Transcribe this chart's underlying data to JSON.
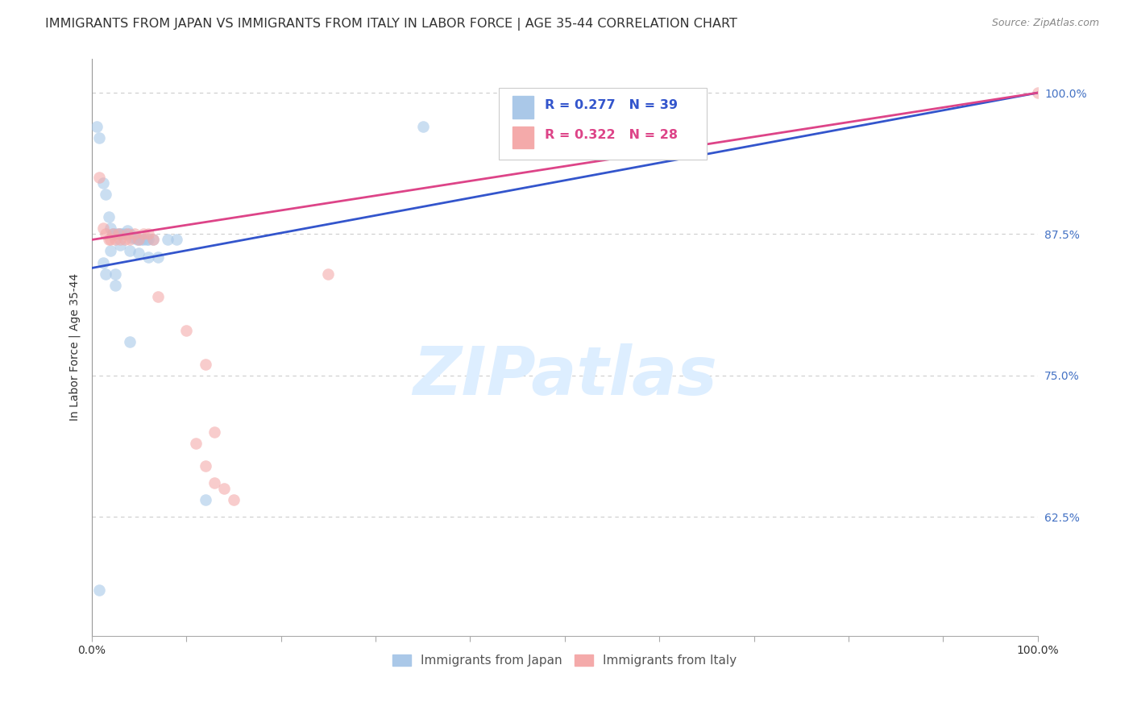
{
  "title": "IMMIGRANTS FROM JAPAN VS IMMIGRANTS FROM ITALY IN LABOR FORCE | AGE 35-44 CORRELATION CHART",
  "source_text": "Source: ZipAtlas.com",
  "ylabel": "In Labor Force | Age 35-44",
  "xlim": [
    0.0,
    1.0
  ],
  "ylim": [
    0.52,
    1.03
  ],
  "yticks": [
    0.625,
    0.75,
    0.875,
    1.0
  ],
  "ytick_labels": [
    "62.5%",
    "75.0%",
    "87.5%",
    "100.0%"
  ],
  "japan_R": 0.277,
  "japan_N": 39,
  "italy_R": 0.322,
  "italy_N": 28,
  "japan_color": "#a8c8e8",
  "italy_color": "#f4aaaa",
  "japan_line_color": "#3355cc",
  "italy_line_color": "#dd4488",
  "background_color": "#ffffff",
  "grid_color": "#cccccc",
  "title_fontsize": 11.5,
  "axis_label_fontsize": 10,
  "tick_fontsize": 10,
  "watermark_text": "ZIPatlas",
  "watermark_color": "#ddeeff",
  "watermark_fontsize": 60,
  "japan_x": [
    0.005,
    0.008,
    0.012,
    0.015,
    0.018,
    0.02,
    0.022,
    0.025,
    0.028,
    0.03,
    0.032,
    0.035,
    0.038,
    0.04,
    0.042,
    0.045,
    0.048,
    0.05,
    0.052,
    0.055,
    0.058,
    0.06,
    0.065,
    0.012,
    0.015,
    0.02,
    0.025,
    0.03,
    0.04,
    0.05,
    0.06,
    0.07,
    0.08,
    0.025,
    0.09,
    0.12,
    0.35,
    0.008,
    0.04
  ],
  "japan_y": [
    0.97,
    0.96,
    0.92,
    0.91,
    0.89,
    0.88,
    0.875,
    0.875,
    0.875,
    0.875,
    0.875,
    0.875,
    0.878,
    0.875,
    0.872,
    0.872,
    0.87,
    0.87,
    0.87,
    0.87,
    0.87,
    0.87,
    0.87,
    0.85,
    0.84,
    0.86,
    0.84,
    0.865,
    0.86,
    0.858,
    0.855,
    0.855,
    0.87,
    0.83,
    0.87,
    0.64,
    0.97,
    0.56,
    0.78
  ],
  "italy_x": [
    0.008,
    0.012,
    0.015,
    0.018,
    0.02,
    0.022,
    0.025,
    0.028,
    0.03,
    0.035,
    0.038,
    0.04,
    0.045,
    0.05,
    0.055,
    0.06,
    0.065,
    0.07,
    0.1,
    0.11,
    0.12,
    0.13,
    0.14,
    0.15,
    0.12,
    0.13,
    0.25,
    1.0
  ],
  "italy_y": [
    0.925,
    0.88,
    0.875,
    0.87,
    0.87,
    0.875,
    0.87,
    0.875,
    0.87,
    0.87,
    0.875,
    0.87,
    0.875,
    0.87,
    0.875,
    0.875,
    0.87,
    0.82,
    0.79,
    0.69,
    0.67,
    0.655,
    0.65,
    0.64,
    0.76,
    0.7,
    0.84,
    1.0
  ]
}
